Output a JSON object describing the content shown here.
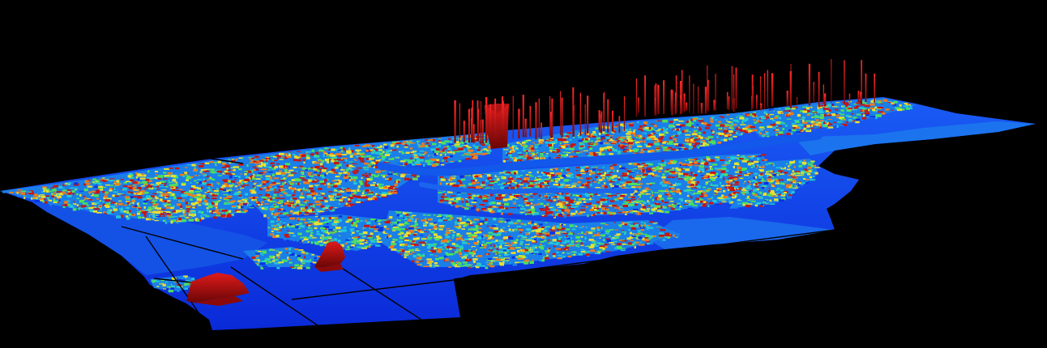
{
  "scene": {
    "background_color": "#000000",
    "color_ramp": [
      "#0a2fe0",
      "#1a7fe8",
      "#22c8d8",
      "#4ee05a",
      "#e8e030",
      "#f07a1a",
      "#c81414"
    ],
    "water_color": "#0b2df0",
    "shallow_color": "#1660f2",
    "tile_edge_color": "#000000",
    "spike_color": "#d01010",
    "peak_shadow_color": "#5a0808"
  }
}
